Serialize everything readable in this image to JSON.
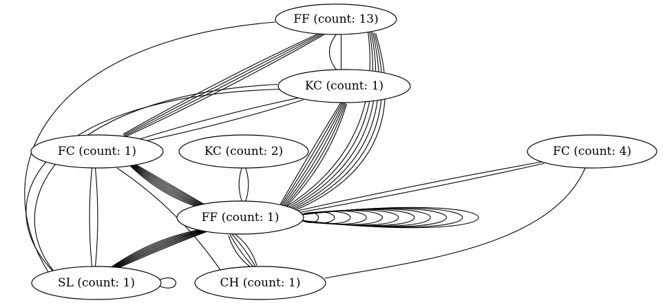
{
  "diagram": {
    "type": "directed-multigraph",
    "colors": {
      "background": "#ffffff",
      "stroke": "#000000",
      "text": "#000000"
    },
    "nodes": [
      {
        "id": "ff13",
        "label": "FF (count: 13)"
      },
      {
        "id": "kc1",
        "label": "KC (count: 1)"
      },
      {
        "id": "fc1",
        "label": "FC (count: 1)"
      },
      {
        "id": "kc2",
        "label": "KC (count: 2)"
      },
      {
        "id": "fc4",
        "label": "FC (count: 4)"
      },
      {
        "id": "ff1",
        "label": "FF (count: 1)"
      },
      {
        "id": "sl1",
        "label": "SL (count: 1)"
      },
      {
        "id": "ch1",
        "label": "CH (count: 1)"
      }
    ],
    "edges": [
      {
        "from": "ff13",
        "to": "kc1",
        "count": 2
      },
      {
        "from": "ff13",
        "to": "fc1",
        "count": 4
      },
      {
        "from": "ff13",
        "to": "ff1",
        "count": 6
      },
      {
        "from": "ff13",
        "to": "sl1",
        "count": 1
      },
      {
        "from": "kc1",
        "to": "fc1",
        "count": 2
      },
      {
        "from": "kc1",
        "to": "sl1",
        "count": 2
      },
      {
        "from": "kc1",
        "to": "ff1",
        "count": 6
      },
      {
        "from": "fc1",
        "to": "ff1",
        "count": 8
      },
      {
        "from": "fc1",
        "to": "sl1",
        "count": 2
      },
      {
        "from": "fc1",
        "to": "ch1",
        "count": 1
      },
      {
        "from": "kc2",
        "to": "ff1",
        "count": 2
      },
      {
        "from": "fc4",
        "to": "ff1",
        "count": 2
      },
      {
        "from": "fc4",
        "to": "ch1",
        "count": 1
      },
      {
        "from": "ff1",
        "to": "ff1",
        "count": 11
      },
      {
        "from": "ff1",
        "to": "sl1",
        "count": 8
      },
      {
        "from": "ff1",
        "to": "ch1",
        "count": 4
      },
      {
        "from": "sl1",
        "to": "sl1",
        "count": 1
      }
    ]
  }
}
